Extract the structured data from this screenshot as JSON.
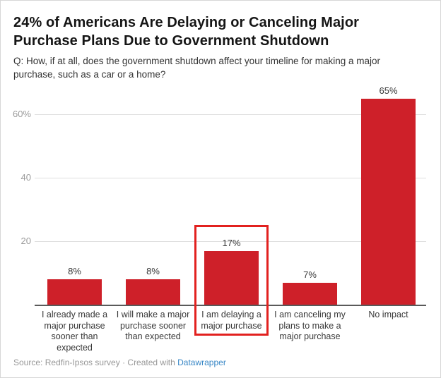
{
  "chart_data": {
    "type": "bar",
    "title": "24% of Americans Are Delaying or Canceling Major\nPurchase Plans Due to Government Shutdown",
    "subtitle": "Q: How, if at all, does the government shutdown affect your timeline for making a major\npurchase, such as a car or a home?",
    "categories": [
      "I already made a\nmajor purchase\nsooner than\nexpected",
      "I will make a major\npurchase sooner\nthan expected",
      "I am delaying a\nmajor purchase",
      "I am canceling my\nplans to make a\nmajor purchase",
      "No impact"
    ],
    "values": [
      8,
      8,
      17,
      7,
      65
    ],
    "value_labels": [
      "8%",
      "8%",
      "17%",
      "7%",
      "65%"
    ],
    "highlighted_category_index": 2,
    "xlabel": "",
    "ylabel": "",
    "ylim": [
      0,
      68
    ],
    "yticks": [
      {
        "value": 20,
        "label": "20"
      },
      {
        "value": 40,
        "label": "40"
      },
      {
        "value": 60,
        "label": "60%"
      }
    ],
    "grid": true,
    "legend": "none",
    "colors": {
      "bar": "#ce2029",
      "highlight_box": "#e2211f",
      "gridline": "#dedede",
      "axis_line": "#5a5a5a",
      "tick_label": "#9b9b9b",
      "value_label": "#363636",
      "category_label": "#383838"
    }
  },
  "footer": {
    "text": "Source: Redfin-Ipsos survey · Created with ",
    "link": "Datawrapper",
    "link_color": "#3887c6"
  }
}
